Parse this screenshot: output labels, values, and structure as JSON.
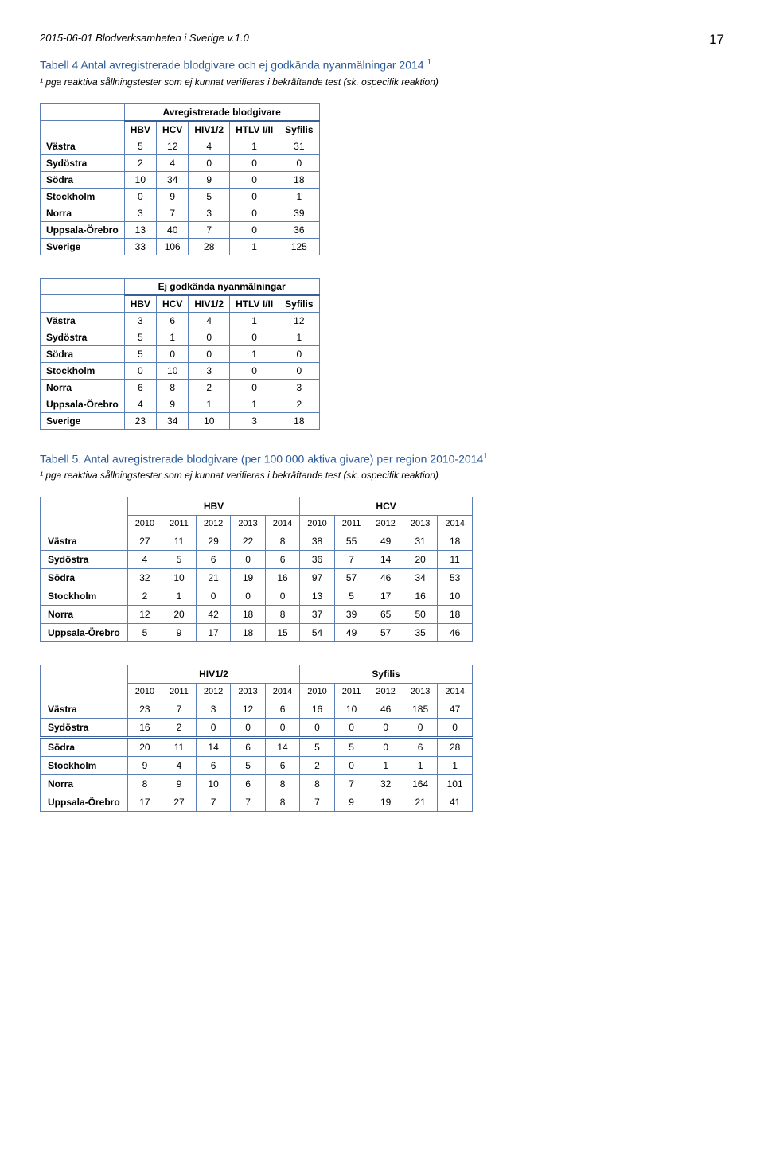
{
  "header": {
    "doc_title": "2015-06-01 Blodverksamheten i Sverige v.1.0",
    "page_number": "17"
  },
  "tab4": {
    "title_prefix": "Tabell 4 Antal avregistrerade blodgivare och ej godkända nyanmälningar 2014",
    "sup": "1",
    "footnote": "¹ pga reaktiva sållningstester som ej kunnat verifieras i bekräftande test (sk. ospecifik reaktion)"
  },
  "t1": {
    "caption": "Avregistrerade blodgivare",
    "cols": [
      "HBV",
      "HCV",
      "HIV1/2",
      "HTLV I/II",
      "Syfilis"
    ],
    "rows": [
      {
        "label": "Västra",
        "v": [
          "5",
          "12",
          "4",
          "1",
          "31"
        ]
      },
      {
        "label": "Sydöstra",
        "v": [
          "2",
          "4",
          "0",
          "0",
          "0"
        ]
      },
      {
        "label": "Södra",
        "v": [
          "10",
          "34",
          "9",
          "0",
          "18"
        ]
      },
      {
        "label": "Stockholm",
        "v": [
          "0",
          "9",
          "5",
          "0",
          "1"
        ]
      },
      {
        "label": "Norra",
        "v": [
          "3",
          "7",
          "3",
          "0",
          "39"
        ]
      },
      {
        "label": "Uppsala-Örebro",
        "v": [
          "13",
          "40",
          "7",
          "0",
          "36"
        ]
      },
      {
        "label": "Sverige",
        "v": [
          "33",
          "106",
          "28",
          "1",
          "125"
        ]
      }
    ]
  },
  "t2": {
    "caption": "Ej godkända nyanmälningar",
    "cols": [
      "HBV",
      "HCV",
      "HIV1/2",
      "HTLV I/II",
      "Syfilis"
    ],
    "rows": [
      {
        "label": "Västra",
        "v": [
          "3",
          "6",
          "4",
          "1",
          "12"
        ]
      },
      {
        "label": "Sydöstra",
        "v": [
          "5",
          "1",
          "0",
          "0",
          "1"
        ]
      },
      {
        "label": "Södra",
        "v": [
          "5",
          "0",
          "0",
          "1",
          "0"
        ]
      },
      {
        "label": "Stockholm",
        "v": [
          "0",
          "10",
          "3",
          "0",
          "0"
        ]
      },
      {
        "label": "Norra",
        "v": [
          "6",
          "8",
          "2",
          "0",
          "3"
        ]
      },
      {
        "label": "Uppsala-Örebro",
        "v": [
          "4",
          "9",
          "1",
          "1",
          "2"
        ]
      },
      {
        "label": "Sverige",
        "v": [
          "23",
          "34",
          "10",
          "3",
          "18"
        ]
      }
    ]
  },
  "tab5": {
    "title": "Tabell 5. Antal avregistrerade blodgivare (per 100 000 aktiva givare) per region 2010-2014",
    "sup": "1",
    "footnote": "¹ pga reaktiva sållningstester som ej kunnat verifieras i bekräftande test (sk. ospecifik reaktion)"
  },
  "t3": {
    "group1": "HBV",
    "group2": "HCV",
    "years": [
      "2010",
      "2011",
      "2012",
      "2013",
      "2014",
      "2010",
      "2011",
      "2012",
      "2013",
      "2014"
    ],
    "rows": [
      {
        "label": "Västra",
        "v": [
          "27",
          "11",
          "29",
          "22",
          "8",
          "38",
          "55",
          "49",
          "31",
          "18"
        ]
      },
      {
        "label": "Sydöstra",
        "v": [
          "4",
          "5",
          "6",
          "0",
          "6",
          "36",
          "7",
          "14",
          "20",
          "11"
        ]
      },
      {
        "label": "Södra",
        "v": [
          "32",
          "10",
          "21",
          "19",
          "16",
          "97",
          "57",
          "46",
          "34",
          "53"
        ]
      },
      {
        "label": "Stockholm",
        "v": [
          "2",
          "1",
          "0",
          "0",
          "0",
          "13",
          "5",
          "17",
          "16",
          "10"
        ]
      },
      {
        "label": "Norra",
        "v": [
          "12",
          "20",
          "42",
          "18",
          "8",
          "37",
          "39",
          "65",
          "50",
          "18"
        ]
      },
      {
        "label": "Uppsala-Örebro",
        "v": [
          "5",
          "9",
          "17",
          "18",
          "15",
          "54",
          "49",
          "57",
          "35",
          "46"
        ]
      }
    ]
  },
  "t4": {
    "group1": "HIV1/2",
    "group2": "Syfilis",
    "years": [
      "2010",
      "2011",
      "2012",
      "2013",
      "2014",
      "2010",
      "2011",
      "2012",
      "2013",
      "2014"
    ],
    "rows": [
      {
        "label": "Västra",
        "v": [
          "23",
          "7",
          "3",
          "12",
          "6",
          "16",
          "10",
          "46",
          "185",
          "47"
        ]
      },
      {
        "label": "Sydöstra",
        "v": [
          "16",
          "2",
          "0",
          "0",
          "0",
          "0",
          "0",
          "0",
          "0",
          "0"
        ]
      },
      {
        "label": "Södra",
        "v": [
          "20",
          "11",
          "14",
          "6",
          "14",
          "5",
          "5",
          "0",
          "6",
          "28"
        ]
      },
      {
        "label": "Stockholm",
        "v": [
          "9",
          "4",
          "6",
          "5",
          "6",
          "2",
          "0",
          "1",
          "1",
          "1"
        ]
      },
      {
        "label": "Norra",
        "v": [
          "8",
          "9",
          "10",
          "6",
          "8",
          "8",
          "7",
          "32",
          "164",
          "101"
        ]
      },
      {
        "label": "Uppsala-Örebro",
        "v": [
          "17",
          "27",
          "7",
          "7",
          "8",
          "7",
          "9",
          "19",
          "21",
          "41"
        ]
      }
    ]
  }
}
